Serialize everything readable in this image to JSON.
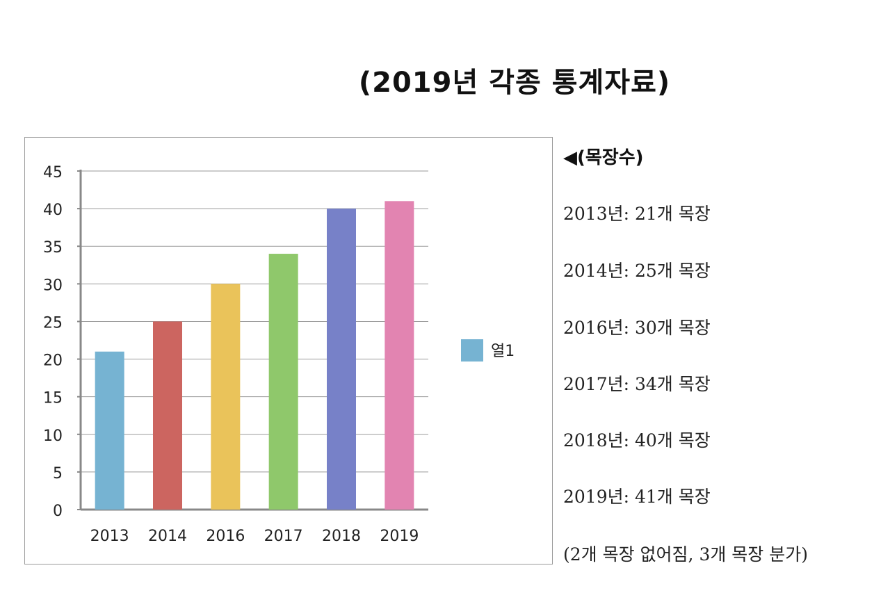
{
  "title": "(2019년 각종 통계자료)",
  "colors": {
    "bars": [
      "#76b3d2",
      "#cc6560",
      "#eac35a",
      "#8fc86b",
      "#7781c8",
      "#e284b1"
    ],
    "legend": "#76b3d2",
    "grid": "#9a9a9a",
    "axis": "#888888"
  },
  "chart_data": {
    "type": "bar",
    "categories": [
      "2013",
      "2014",
      "2016",
      "2017",
      "2018",
      "2019"
    ],
    "series": [
      {
        "name": "열1",
        "values": [
          21,
          25,
          30,
          34,
          40,
          41
        ]
      }
    ],
    "yticks": [
      "0",
      "5",
      "10",
      "15",
      "20",
      "25",
      "30",
      "35",
      "40",
      "45"
    ],
    "ylim": [
      0,
      45
    ],
    "grid": true,
    "legend_position": "right"
  },
  "side": {
    "heading": "◀(목장수)",
    "items": [
      "2013년: 21개 목장",
      "2014년: 25개 목장",
      "2016년: 30개 목장",
      "2017년: 34개 목장",
      "2018년: 40개 목장",
      "2019년: 41개 목장"
    ],
    "note": "(2개 목장 없어짐, 3개 목장 분가)"
  }
}
